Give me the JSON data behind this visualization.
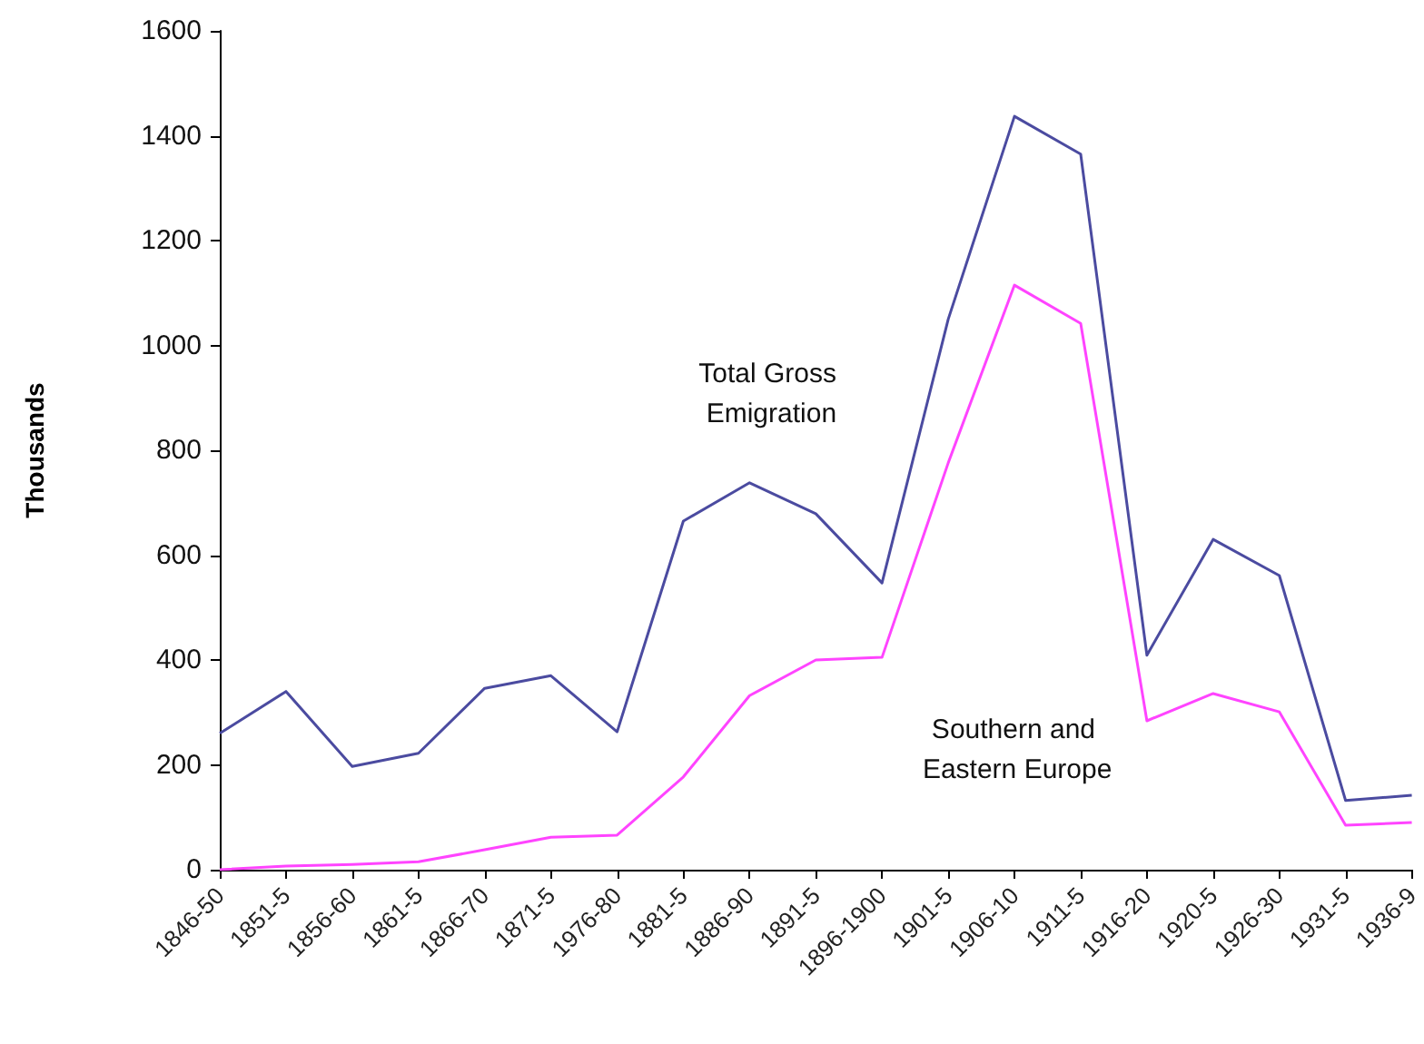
{
  "chart_data": {
    "type": "line",
    "ylabel": "Thousands",
    "categories": [
      "1846-50",
      "1851-5",
      "1856-60",
      "1861-5",
      "1866-70",
      "1871-5",
      "1976-80",
      "1881-5",
      "1886-90",
      "1891-5",
      "1896-1900",
      "1901-5",
      "1906-10",
      "1911-5",
      "1916-20",
      "1920-5",
      "1926-30",
      "1931-5",
      "1936-9"
    ],
    "series": [
      {
        "name": "Total Gross Emigration",
        "color": "#4b4ba0",
        "values": [
          260,
          340,
          197,
          222,
          346,
          370,
          263,
          665,
          738,
          679,
          547,
          1050,
          1437,
          1365,
          409,
          630,
          561,
          132,
          142
        ]
      },
      {
        "name": "Southern and Eastern Europe",
        "color": "#ff44ff",
        "values": [
          0,
          7,
          10,
          15,
          38,
          62,
          66,
          177,
          332,
          400,
          405,
          776,
          1115,
          1042,
          284,
          336,
          301,
          85,
          90
        ]
      }
    ],
    "ylim": [
      0,
      1600
    ],
    "yticks": [
      0,
      200,
      400,
      600,
      800,
      1000,
      1200,
      1400,
      1600
    ],
    "grid": false,
    "legend": false,
    "marker": "none",
    "line_style": "solid"
  }
}
